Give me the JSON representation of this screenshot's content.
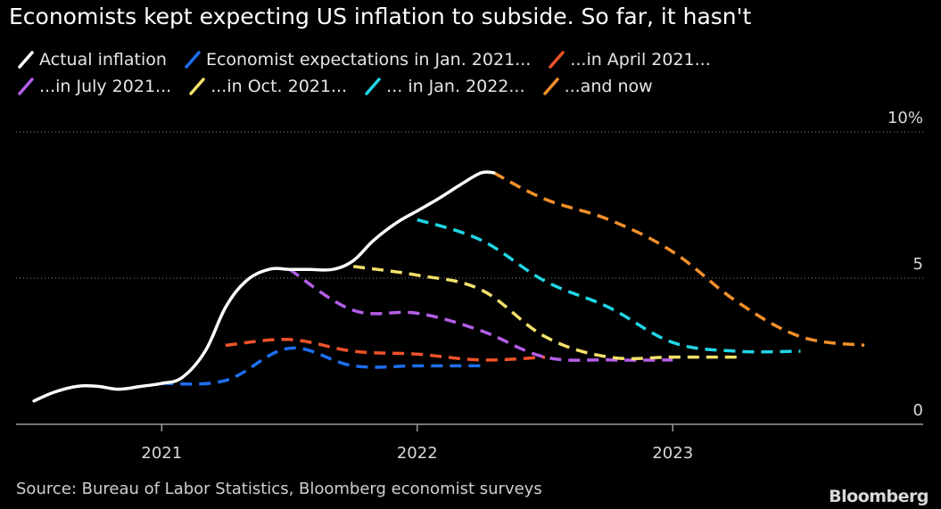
{
  "title": "Economists kept expecting US inflation to subside. So far, it hasn't",
  "source": "Source: Bureau of Labor Statistics, Bloomberg economist surveys",
  "brand": "Bloomberg",
  "legend": [
    {
      "label": "Actual inflation",
      "color": "#ffffff",
      "icon": "slash-line-icon"
    },
    {
      "label": "Economist expectations in Jan. 2021...",
      "color": "#1e6ff0",
      "icon": "slash-line-icon"
    },
    {
      "label": "...in April 2021...",
      "color": "#f0522a",
      "icon": "slash-line-icon"
    },
    {
      "label": "...in July 2021...",
      "color": "#b45ee8",
      "icon": "slash-line-icon"
    },
    {
      "label": "...in Oct. 2021...",
      "color": "#f3e06a",
      "icon": "slash-line-icon"
    },
    {
      "label": "... in Jan. 2022...",
      "color": "#21d6e6",
      "icon": "slash-line-icon"
    },
    {
      "label": "...and now",
      "color": "#f3902a",
      "icon": "slash-line-icon"
    }
  ],
  "chart_data": {
    "type": "line",
    "title": "Economists kept expecting US inflation to subside. So far, it hasn't",
    "x_unit": "year",
    "xlim": [
      2020.43,
      2023.98
    ],
    "ylim": [
      0,
      10
    ],
    "y_ticks": [
      {
        "value": 0,
        "label": "0"
      },
      {
        "value": 5,
        "label": "5"
      },
      {
        "value": 10,
        "label": "10%"
      }
    ],
    "x_ticks": [
      {
        "value": 2021,
        "label": "2021"
      },
      {
        "value": 2022,
        "label": "2022"
      },
      {
        "value": 2023,
        "label": "2023"
      }
    ],
    "grid": "horizontal dotted",
    "legend_position": "top-left",
    "series": [
      {
        "name": "Actual inflation",
        "color": "#ffffff",
        "style": "solid",
        "points": [
          [
            2020.5,
            0.8
          ],
          [
            2020.58,
            1.1
          ],
          [
            2020.67,
            1.3
          ],
          [
            2020.75,
            1.3
          ],
          [
            2020.83,
            1.2
          ],
          [
            2020.92,
            1.3
          ],
          [
            2021.0,
            1.4
          ],
          [
            2021.08,
            1.6
          ],
          [
            2021.17,
            2.5
          ],
          [
            2021.25,
            4.0
          ],
          [
            2021.33,
            4.9
          ],
          [
            2021.42,
            5.3
          ],
          [
            2021.5,
            5.3
          ],
          [
            2021.58,
            5.3
          ],
          [
            2021.67,
            5.3
          ],
          [
            2021.75,
            5.6
          ],
          [
            2021.83,
            6.3
          ],
          [
            2021.92,
            6.9
          ],
          [
            2022.0,
            7.3
          ],
          [
            2022.08,
            7.7
          ],
          [
            2022.17,
            8.2
          ],
          [
            2022.25,
            8.6
          ],
          [
            2022.3,
            8.6
          ]
        ]
      },
      {
        "name": "Economist expectations in Jan. 2021...",
        "color": "#1e6ff0",
        "style": "dashed",
        "points": [
          [
            2021.0,
            1.4
          ],
          [
            2021.25,
            1.5
          ],
          [
            2021.5,
            2.6
          ],
          [
            2021.75,
            2.0
          ],
          [
            2022.0,
            2.0
          ],
          [
            2022.25,
            2.0
          ]
        ]
      },
      {
        "name": "...in April 2021...",
        "color": "#f0522a",
        "style": "dashed",
        "points": [
          [
            2021.25,
            2.7
          ],
          [
            2021.5,
            2.9
          ],
          [
            2021.75,
            2.5
          ],
          [
            2022.0,
            2.4
          ],
          [
            2022.25,
            2.2
          ],
          [
            2022.5,
            2.3
          ]
        ]
      },
      {
        "name": "...in July 2021...",
        "color": "#b45ee8",
        "style": "dashed",
        "points": [
          [
            2021.5,
            5.3
          ],
          [
            2021.75,
            3.9
          ],
          [
            2022.0,
            3.8
          ],
          [
            2022.25,
            3.2
          ],
          [
            2022.5,
            2.3
          ],
          [
            2022.75,
            2.2
          ],
          [
            2023.0,
            2.2
          ]
        ]
      },
      {
        "name": "...in Oct. 2021...",
        "color": "#f3e06a",
        "style": "dashed",
        "points": [
          [
            2021.75,
            5.4
          ],
          [
            2022.0,
            5.1
          ],
          [
            2022.25,
            4.6
          ],
          [
            2022.5,
            3.0
          ],
          [
            2022.75,
            2.3
          ],
          [
            2023.0,
            2.3
          ],
          [
            2023.25,
            2.3
          ]
        ]
      },
      {
        "name": "... in Jan. 2022...",
        "color": "#21d6e6",
        "style": "dashed",
        "points": [
          [
            2022.0,
            7.0
          ],
          [
            2022.25,
            6.3
          ],
          [
            2022.5,
            4.9
          ],
          [
            2022.75,
            4.0
          ],
          [
            2023.0,
            2.8
          ],
          [
            2023.25,
            2.5
          ],
          [
            2023.5,
            2.5
          ]
        ]
      },
      {
        "name": "...and now",
        "color": "#f3902a",
        "style": "dashed",
        "points": [
          [
            2022.3,
            8.6
          ],
          [
            2022.5,
            7.7
          ],
          [
            2022.75,
            7.0
          ],
          [
            2023.0,
            5.9
          ],
          [
            2023.25,
            4.2
          ],
          [
            2023.5,
            3.0
          ],
          [
            2023.75,
            2.7
          ]
        ]
      }
    ]
  }
}
